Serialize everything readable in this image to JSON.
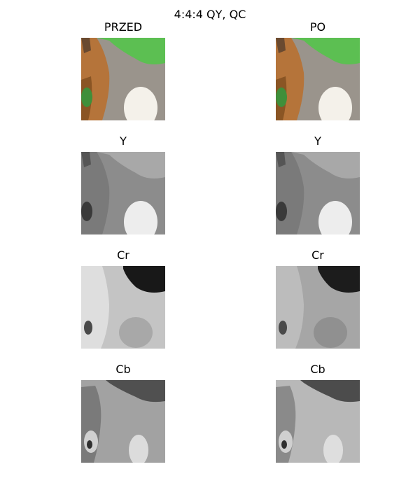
{
  "figure": {
    "title": "4:4:4 QY, QC"
  },
  "columns": [
    {
      "panels": [
        {
          "title": "PRZED",
          "kind": "rgb"
        },
        {
          "title": "Y",
          "kind": "y"
        },
        {
          "title": "Cr",
          "kind": "cr"
        },
        {
          "title": "Cb",
          "kind": "cb"
        }
      ]
    },
    {
      "panels": [
        {
          "title": "PO",
          "kind": "rgb"
        },
        {
          "title": "Y",
          "kind": "y"
        },
        {
          "title": "Cr",
          "kind": "cr"
        },
        {
          "title": "Cb",
          "kind": "cb"
        }
      ]
    }
  ],
  "colors": {
    "background_green": "#5cbf52",
    "fur_orange": "#b5743a",
    "fur_gray": "#9a948c",
    "fur_white": "#f4f1ea"
  }
}
